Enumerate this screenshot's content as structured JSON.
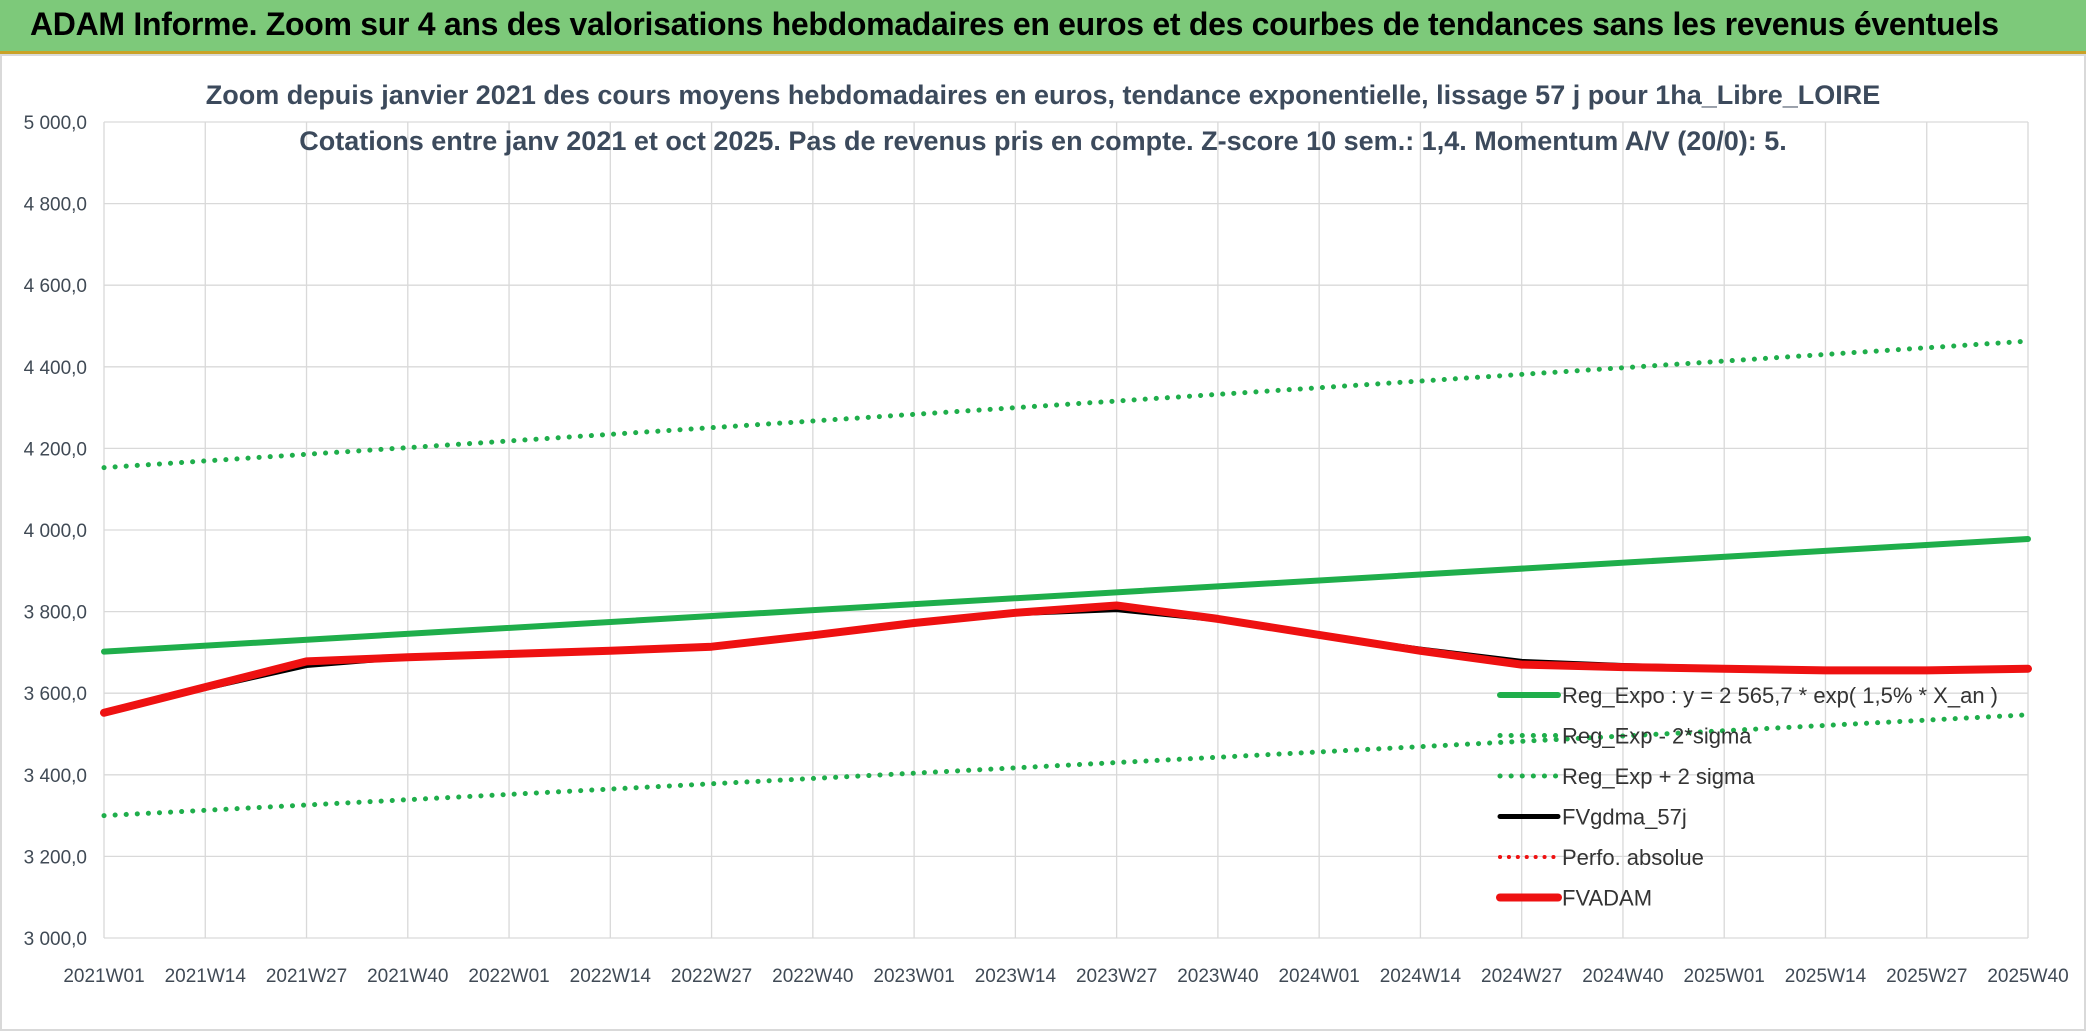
{
  "banner": {
    "title": "ADAM Informe. Zoom sur 4 ans des valorisations hebdomadaires en euros et des courbes de tendances sans les revenus éventuels"
  },
  "colors": {
    "banner_bg": "#7dc97a",
    "trend_green": "#1fae4b",
    "adam_red": "#ee1111",
    "smooth_black": "#000000",
    "grid": "#d9d9d9"
  },
  "chart_data": {
    "type": "line",
    "title": "Zoom depuis janvier 2021 des cours moyens hebdomadaires en euros, tendance exponentielle, lissage 57 j pour 1ha_Libre_LOIRE",
    "subtitle": "Cotations entre janv 2021 et oct 2025. Pas de revenus pris en compte. Z-score 10 sem.: 1,4. Momentum A/V (20/0): 5.",
    "xlabel": "",
    "ylabel": "",
    "x_ticks": [
      "2021W01",
      "2021W14",
      "2021W27",
      "2021W40",
      "2022W01",
      "2022W14",
      "2022W27",
      "2022W40",
      "2023W01",
      "2023W14",
      "2023W27",
      "2023W40",
      "2024W01",
      "2024W14",
      "2024W27",
      "2024W40",
      "2025W01",
      "2025W14",
      "2025W27",
      "2025W40"
    ],
    "y_ticks": [
      "3 000,0",
      "3 200,0",
      "3 400,0",
      "3 600,0",
      "3 800,0",
      "4 000,0",
      "4 200,0",
      "4 400,0",
      "4 600,0",
      "4 800,0",
      "5 000,0"
    ],
    "ylim": [
      3000,
      5000
    ],
    "grid": true,
    "legend_position": "bottom-right",
    "series": [
      {
        "name": "Reg_Expo : y = 2 565,7 * exp( 1,5% *  X_an )",
        "style": "solid",
        "color": "#1fae4b",
        "width": 6,
        "points": [
          [
            "2021W01",
            3702
          ],
          [
            "2025W40",
            3978
          ]
        ]
      },
      {
        "name": "Reg_Exp - 2*sigma",
        "style": "dotted",
        "color": "#1fae4b",
        "width": 5,
        "points": [
          [
            "2021W01",
            3300
          ],
          [
            "2025W40",
            3547
          ]
        ]
      },
      {
        "name": "Reg_Exp + 2 sigma",
        "style": "dotted",
        "color": "#1fae4b",
        "width": 5,
        "points": [
          [
            "2021W01",
            4153
          ],
          [
            "2025W40",
            4463
          ]
        ]
      },
      {
        "name": "FVgdma_57j",
        "style": "solid",
        "color": "#000000",
        "width": 5,
        "points": [
          [
            "2021W01",
            3552
          ],
          [
            "2021W14",
            3612
          ],
          [
            "2021W27",
            3668
          ],
          [
            "2021W40",
            3688
          ],
          [
            "2022W01",
            3696
          ],
          [
            "2022W14",
            3704
          ],
          [
            "2022W27",
            3714
          ],
          [
            "2022W40",
            3742
          ],
          [
            "2023W01",
            3770
          ],
          [
            "2023W14",
            3795
          ],
          [
            "2023W27",
            3805
          ],
          [
            "2023W40",
            3780
          ],
          [
            "2024W01",
            3742
          ],
          [
            "2024W14",
            3708
          ],
          [
            "2024W27",
            3678
          ],
          [
            "2024W40",
            3668
          ],
          [
            "2025W01",
            3662
          ],
          [
            "2025W14",
            3655
          ],
          [
            "2025W27",
            3655
          ],
          [
            "2025W40",
            3660
          ]
        ]
      },
      {
        "name": "Perfo. absolue",
        "style": "dotted",
        "color": "#ee1111",
        "width": 4,
        "points": []
      },
      {
        "name": "FVADAM",
        "style": "solid",
        "color": "#ee1111",
        "width": 8,
        "points": [
          [
            "2021W01",
            3552
          ],
          [
            "2021W14",
            3615
          ],
          [
            "2021W27",
            3678
          ],
          [
            "2021W40",
            3688
          ],
          [
            "2022W01",
            3696
          ],
          [
            "2022W14",
            3704
          ],
          [
            "2022W27",
            3714
          ],
          [
            "2022W40",
            3742
          ],
          [
            "2023W01",
            3772
          ],
          [
            "2023W14",
            3797
          ],
          [
            "2023W27",
            3815
          ],
          [
            "2023W40",
            3782
          ],
          [
            "2024W01",
            3743
          ],
          [
            "2024W14",
            3704
          ],
          [
            "2024W27",
            3670
          ],
          [
            "2024W40",
            3664
          ],
          [
            "2025W01",
            3660
          ],
          [
            "2025W14",
            3656
          ],
          [
            "2025W27",
            3656
          ],
          [
            "2025W40",
            3660
          ]
        ]
      }
    ]
  }
}
